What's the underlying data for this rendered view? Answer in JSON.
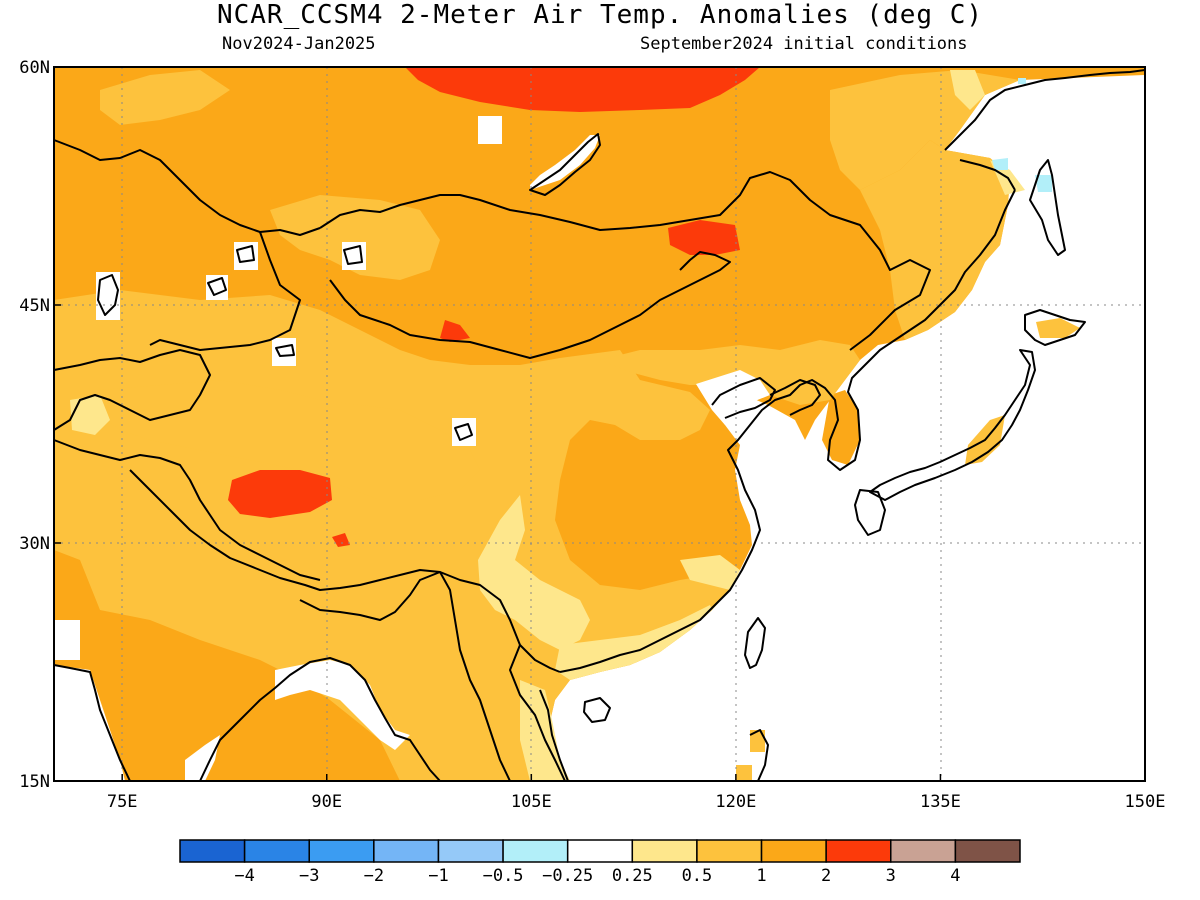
{
  "title": "NCAR_CCSM4 2-Meter Air Temp. Anomalies (deg C)",
  "subtitle_left": "Nov2024-Jan2025",
  "subtitle_right": "September2024 initial conditions",
  "map": {
    "lon_range": [
      70,
      150
    ],
    "lat_range": [
      15,
      60
    ],
    "x_ticks": [
      {
        "value": 75,
        "label": "75E"
      },
      {
        "value": 90,
        "label": "90E"
      },
      {
        "value": 105,
        "label": "105E"
      },
      {
        "value": 120,
        "label": "120E"
      },
      {
        "value": 135,
        "label": "135E"
      },
      {
        "value": 150,
        "label": "150E"
      }
    ],
    "y_ticks": [
      {
        "value": 15,
        "label": "15N"
      },
      {
        "value": 30,
        "label": "30N"
      },
      {
        "value": 45,
        "label": "45N"
      },
      {
        "value": 60,
        "label": "60N"
      }
    ],
    "colors": {
      "land_base": "#fba818",
      "anom_1_2": "#fba818",
      "anom_05_1": "#fdc23d",
      "anom_025_05": "#fee78c",
      "anom_2_3": "#fc3a0a",
      "anom_neg": "#b2eff9",
      "ocean": "#ffffff"
    }
  },
  "legend": {
    "labels": [
      "-4",
      "-3",
      "-2",
      "-1",
      "-0.5",
      "-0.25",
      "0.25",
      "0.5",
      "1",
      "2",
      "3",
      "4"
    ],
    "colors": [
      "#1a64d2",
      "#2a84e6",
      "#3b9cf2",
      "#74b5f6",
      "#95c9f8",
      "#b2eff9",
      "#ffffff",
      "#fee78c",
      "#fdc23d",
      "#fba818",
      "#fc3a0a",
      "#c9a294",
      "#7f5347"
    ]
  }
}
